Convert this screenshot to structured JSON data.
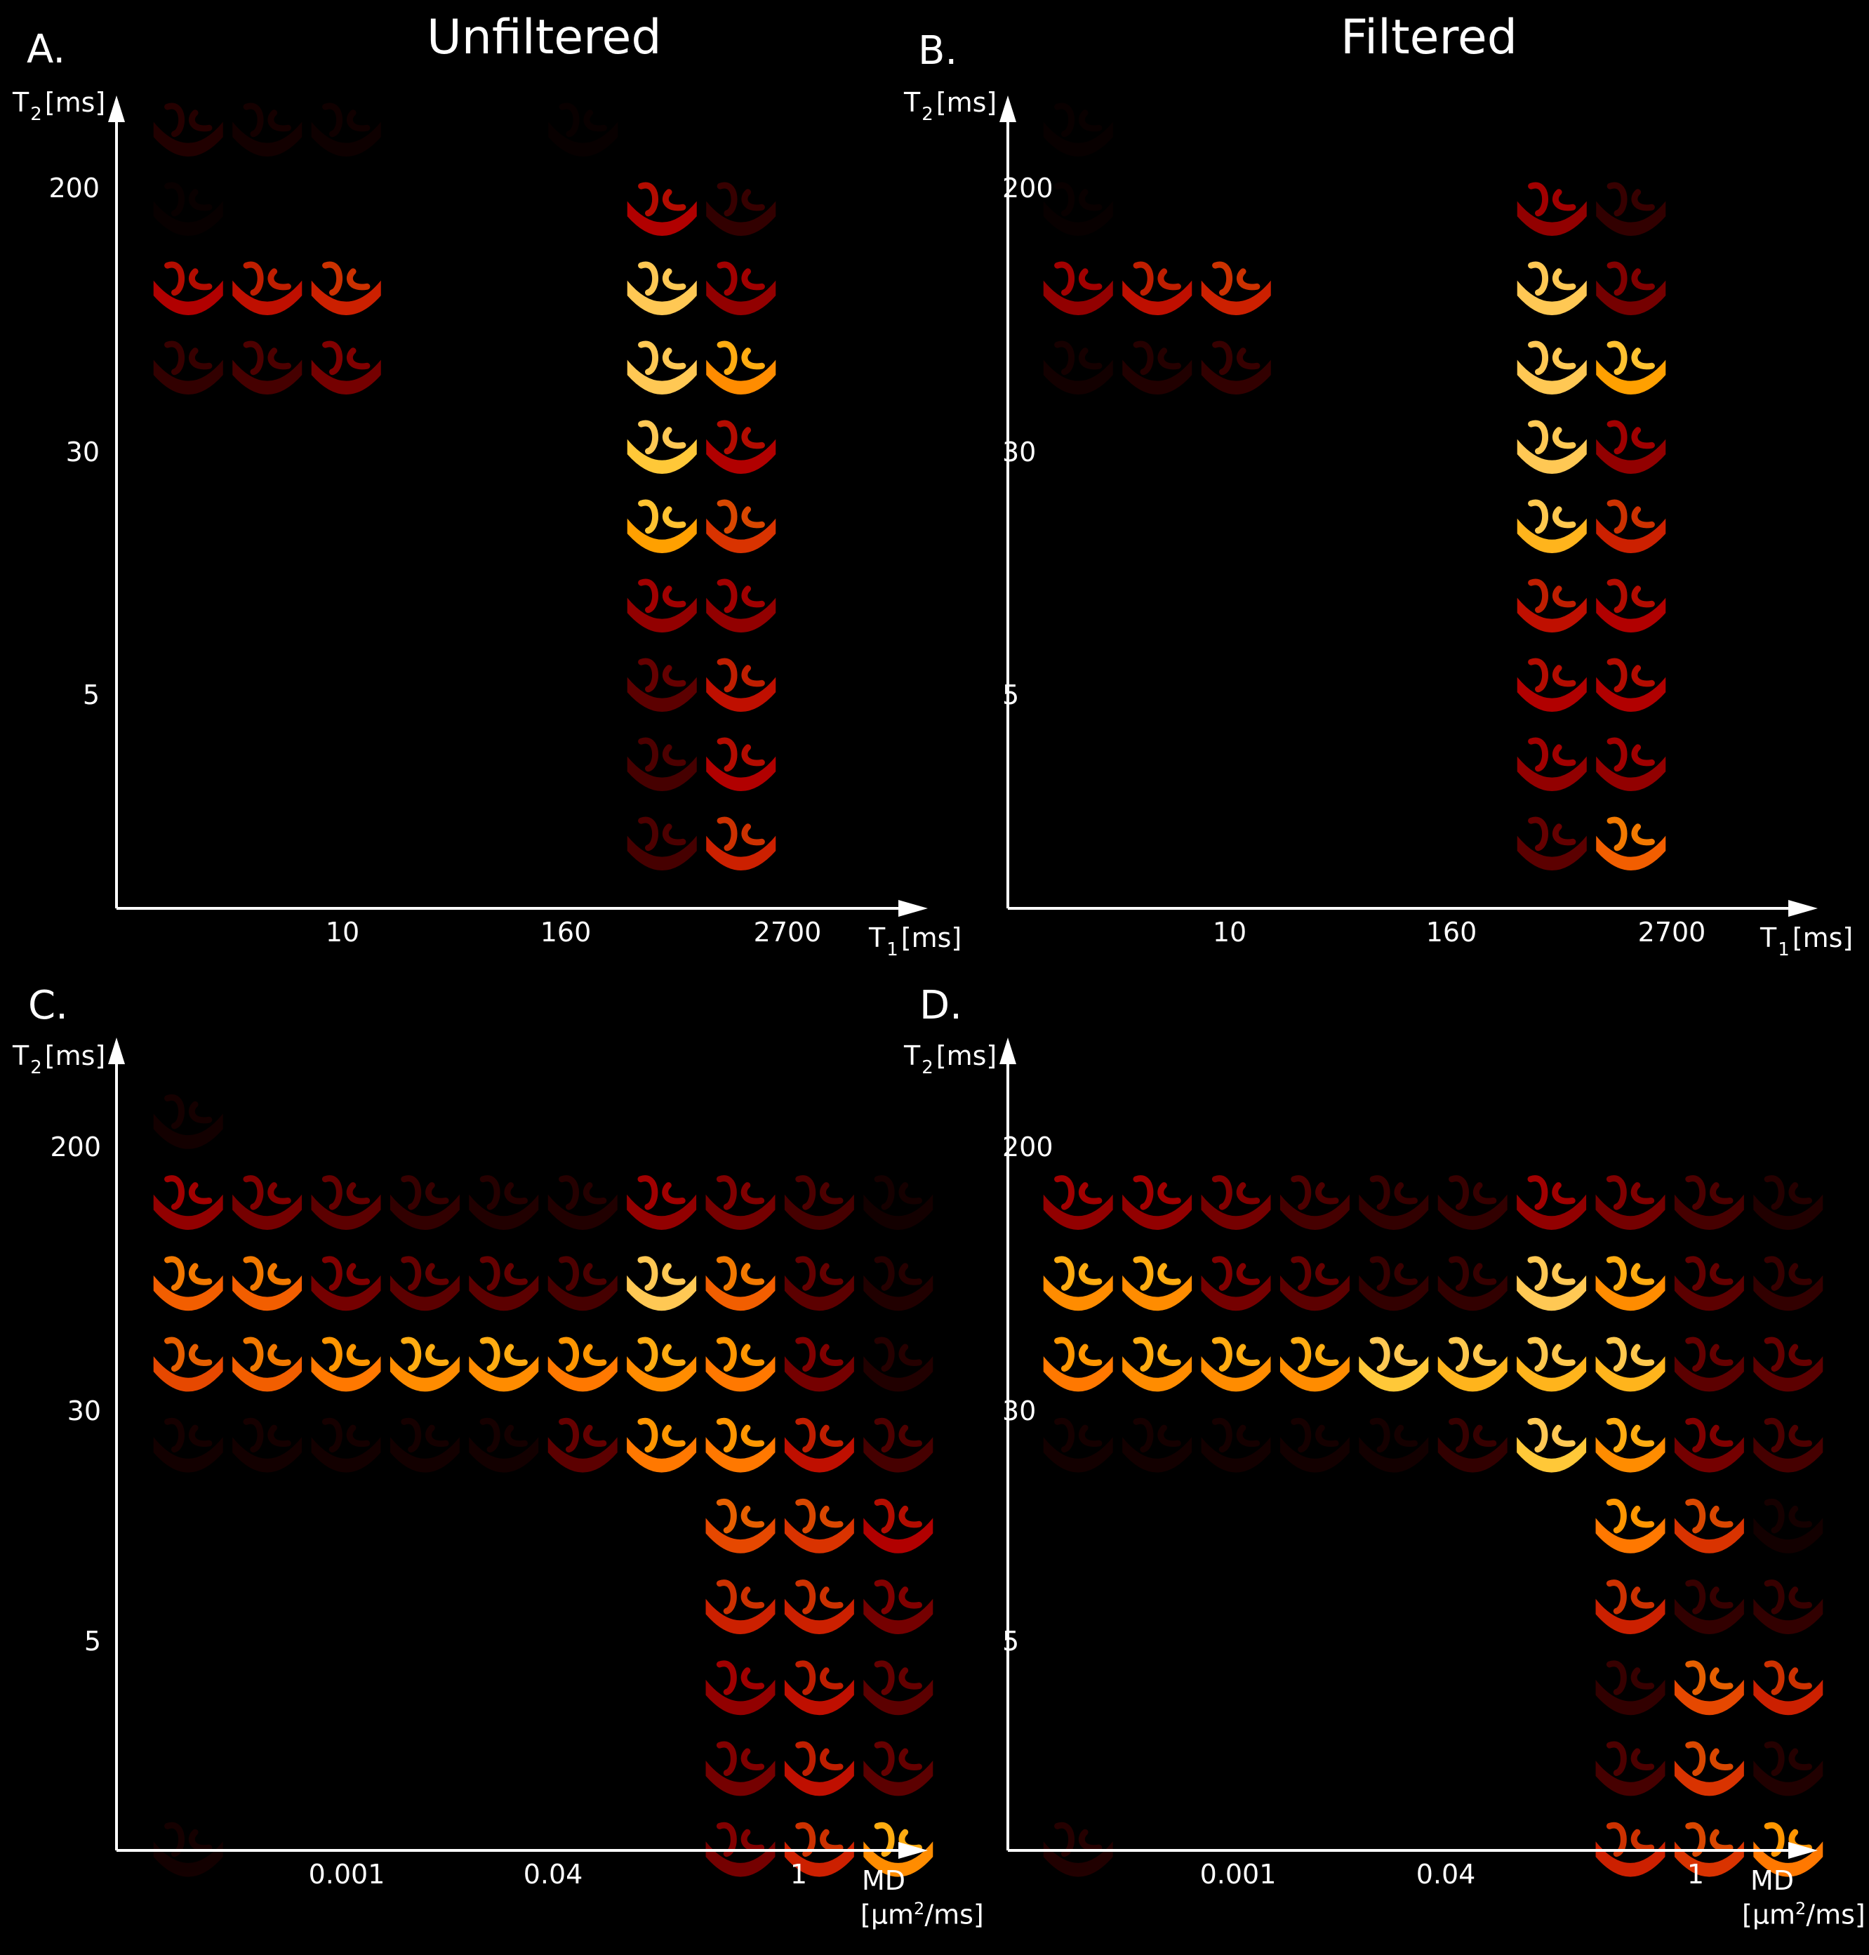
{
  "panels": [
    {
      "letter": "A.",
      "title": "Unfiltered",
      "y_label_main": "T",
      "y_label_sub": "2",
      "y_label_unit": "[ms]",
      "y_ticks": [
        "200",
        "30",
        "5"
      ],
      "x_ticks": [
        "10",
        "160",
        "2700"
      ],
      "x_label_main": "T",
      "x_label_sub": "1",
      "x_label_unit": "[ms]",
      "grid": {
        "cols": 8,
        "rows": 10,
        "intensity": [
          [
            0.15,
            0.1,
            0.08,
            0,
            0,
            0.05,
            0,
            0
          ],
          [
            0.05,
            0,
            0,
            0,
            0,
            0,
            0.45,
            0.2
          ],
          [
            0.45,
            0.5,
            0.55,
            0,
            0,
            0,
            1.0,
            0.4
          ],
          [
            0.2,
            0.25,
            0.35,
            0,
            0,
            0,
            1.0,
            0.8
          ],
          [
            0,
            0,
            0,
            0,
            0,
            0,
            0.95,
            0.45
          ],
          [
            0,
            0,
            0,
            0,
            0,
            0,
            0.85,
            0.6
          ],
          [
            0,
            0,
            0,
            0,
            0,
            0,
            0.4,
            0.4
          ],
          [
            0,
            0,
            0,
            0,
            0,
            0,
            0.3,
            0.5
          ],
          [
            0,
            0,
            0,
            0,
            0,
            0,
            0.25,
            0.45
          ],
          [
            0,
            0,
            0,
            0,
            0,
            0,
            0.25,
            0.55
          ]
        ]
      }
    },
    {
      "letter": "B.",
      "title": "Filtered",
      "y_label_main": "T",
      "y_label_sub": "2",
      "y_label_unit": "[ms]",
      "y_ticks": [
        "200",
        "30",
        "5"
      ],
      "x_ticks": [
        "10",
        "160",
        "2700"
      ],
      "x_label_main": "T",
      "x_label_sub": "1",
      "x_label_unit": "[ms]",
      "grid": {
        "cols": 8,
        "rows": 10,
        "intensity": [
          [
            0.05,
            0,
            0,
            0,
            0,
            0,
            0,
            0
          ],
          [
            0.05,
            0,
            0,
            0,
            0,
            0,
            0.4,
            0.2
          ],
          [
            0.4,
            0.5,
            0.55,
            0,
            0,
            0,
            1.0,
            0.35
          ],
          [
            0.1,
            0.15,
            0.2,
            0,
            0,
            0,
            1.0,
            0.85
          ],
          [
            0,
            0,
            0,
            0,
            0,
            0,
            1.0,
            0.4
          ],
          [
            0,
            0,
            0,
            0,
            0,
            0,
            0.9,
            0.55
          ],
          [
            0,
            0,
            0,
            0,
            0,
            0,
            0.5,
            0.45
          ],
          [
            0,
            0,
            0,
            0,
            0,
            0,
            0.45,
            0.45
          ],
          [
            0,
            0,
            0,
            0,
            0,
            0,
            0.4,
            0.4
          ],
          [
            0,
            0,
            0,
            0,
            0,
            0,
            0.3,
            0.7
          ]
        ]
      }
    },
    {
      "letter": "C.",
      "title": "",
      "y_label_main": "T",
      "y_label_sub": "2",
      "y_label_unit": "[ms]",
      "y_ticks": [
        "200",
        "30",
        "5"
      ],
      "x_ticks": [
        "0.001",
        "0.04",
        "1"
      ],
      "x_label_line1": "MD",
      "x_label_line2_pre": "[µm",
      "x_label_line2_sup": "2",
      "x_label_line2_post": "/ms]",
      "grid": {
        "cols": 10,
        "rows": 10,
        "intensity": [
          [
            0.1,
            0,
            0,
            0,
            0,
            0,
            0,
            0,
            0,
            0
          ],
          [
            0.4,
            0.35,
            0.3,
            0.2,
            0.15,
            0.15,
            0.4,
            0.35,
            0.25,
            0.1
          ],
          [
            0.7,
            0.7,
            0.35,
            0.3,
            0.3,
            0.25,
            1.0,
            0.7,
            0.3,
            0.15
          ],
          [
            0.65,
            0.7,
            0.75,
            0.8,
            0.8,
            0.75,
            0.8,
            0.75,
            0.35,
            0.15
          ],
          [
            0.1,
            0.1,
            0.1,
            0.1,
            0.1,
            0.3,
            0.75,
            0.75,
            0.5,
            0.25
          ],
          [
            0,
            0,
            0,
            0,
            0,
            0,
            0,
            0.65,
            0.6,
            0.45
          ],
          [
            0,
            0,
            0,
            0,
            0,
            0,
            0,
            0.55,
            0.55,
            0.35
          ],
          [
            0,
            0,
            0,
            0,
            0,
            0,
            0,
            0.4,
            0.5,
            0.3
          ],
          [
            0,
            0,
            0,
            0,
            0,
            0,
            0,
            0.35,
            0.5,
            0.3
          ],
          [
            0.1,
            0,
            0,
            0,
            0,
            0,
            0,
            0.35,
            0.55,
            0.8
          ]
        ]
      }
    },
    {
      "letter": "D.",
      "title": "",
      "y_label_main": "T",
      "y_label_sub": "2",
      "y_label_unit": "[ms]",
      "y_ticks": [
        "200",
        "30",
        "5"
      ],
      "x_ticks": [
        "0.001",
        "0.04",
        "1"
      ],
      "x_label_line1": "MD",
      "x_label_line2_pre": "[µm",
      "x_label_line2_sup": "2",
      "x_label_line2_post": "/ms]",
      "grid": {
        "cols": 10,
        "rows": 10,
        "intensity": [
          [
            0,
            0,
            0,
            0,
            0,
            0,
            0,
            0,
            0,
            0
          ],
          [
            0.4,
            0.4,
            0.35,
            0.25,
            0.2,
            0.2,
            0.4,
            0.35,
            0.25,
            0.15
          ],
          [
            0.8,
            0.8,
            0.35,
            0.3,
            0.2,
            0.2,
            1.0,
            0.8,
            0.3,
            0.2
          ],
          [
            0.75,
            0.8,
            0.8,
            0.8,
            0.95,
            0.9,
            0.9,
            0.9,
            0.3,
            0.3
          ],
          [
            0.1,
            0.1,
            0.1,
            0.1,
            0.1,
            0.2,
            0.95,
            0.8,
            0.35,
            0.25
          ],
          [
            0,
            0,
            0,
            0,
            0,
            0,
            0,
            0.75,
            0.6,
            0.1
          ],
          [
            0,
            0,
            0,
            0,
            0,
            0,
            0,
            0.55,
            0.2,
            0.2
          ],
          [
            0,
            0,
            0,
            0,
            0,
            0,
            0,
            0.2,
            0.65,
            0.55
          ],
          [
            0,
            0,
            0,
            0,
            0,
            0,
            0,
            0.25,
            0.6,
            0.15
          ],
          [
            0.15,
            0,
            0,
            0,
            0,
            0,
            0,
            0.55,
            0.6,
            0.75
          ]
        ]
      }
    }
  ]
}
